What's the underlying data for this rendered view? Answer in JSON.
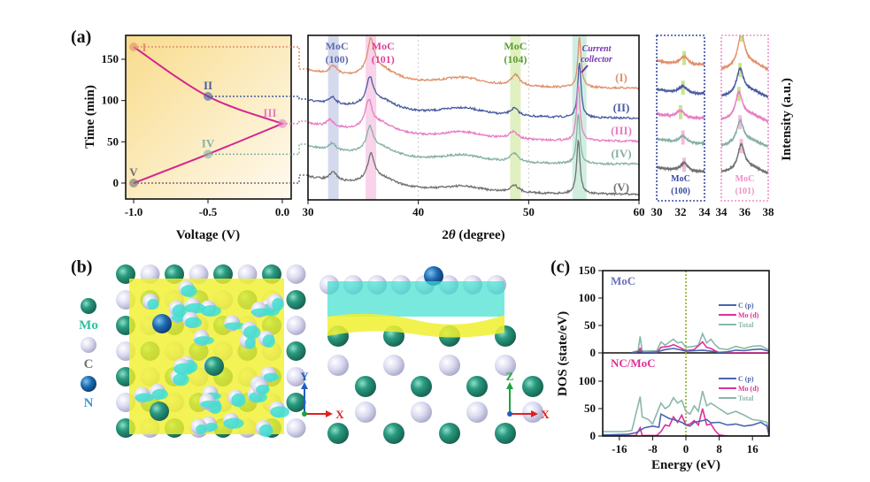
{
  "figure": {
    "panel_labels": {
      "a": "(a)",
      "b": "(b)",
      "c": "(c)"
    },
    "intensity_label": "Intensity (a.u.)"
  },
  "chart_data": [
    {
      "id": "a-voltage-time",
      "type": "line",
      "xlabel": "Voltage (V)",
      "ylabel": "Time (min)",
      "xlim": [
        -1.05,
        0.05
      ],
      "ylim": [
        -20,
        180
      ],
      "xticks": [
        -1.0,
        -0.5,
        0.0
      ],
      "xtick_labels": [
        "-1.0",
        "-0.5",
        "0.0"
      ],
      "yticks": [
        0,
        50,
        100,
        150
      ],
      "line_color": "#d4258f",
      "points": [
        {
          "label": "I",
          "x": -1.0,
          "y": 165,
          "color": "#e0906a"
        },
        {
          "label": "II",
          "x": -0.5,
          "y": 105,
          "color": "#4a5aa0"
        },
        {
          "label": "III",
          "x": 0.0,
          "y": 72,
          "color": "#e87cc4"
        },
        {
          "label": "IV",
          "x": -0.5,
          "y": 35,
          "color": "#86b0a4"
        },
        {
          "label": "V",
          "x": -1.0,
          "y": 0,
          "color": "#707070"
        }
      ]
    },
    {
      "id": "a-xrd",
      "type": "line",
      "xlabel": "2θ (degree)",
      "xlabel_prefix": "2",
      "xlabel_symbol": "θ",
      "xlabel_suffix": " (degree)",
      "xlim": [
        30,
        60
      ],
      "xticks": [
        30,
        40,
        50,
        60
      ],
      "bands": [
        {
          "x": 32.3,
          "color": "#c9d0e8"
        },
        {
          "x": 35.7,
          "color": "#f6c8e4"
        },
        {
          "x": 48.8,
          "color": "#d8ecb0"
        },
        {
          "x": 54.6,
          "color": "#c4ead8"
        }
      ],
      "annotations": [
        {
          "text": "MoC",
          "sub": "(100)",
          "x": 32.3,
          "color": "#5a6ab0"
        },
        {
          "text": "MoC",
          "sub": "(101)",
          "x": 36.8,
          "color": "#e0409a"
        },
        {
          "text": "MoC",
          "sub": "(104)",
          "x": 48.8,
          "color": "#5a9a30"
        }
      ],
      "current_collector": {
        "line1": "Current",
        "line2": "collector",
        "color": "#7a30b0"
      },
      "series": [
        {
          "name": "(I)",
          "color": "#e0906a",
          "peaks": [
            [
              32.3,
              0.35,
              0.4
            ],
            [
              35.7,
              1.3,
              0.35
            ],
            [
              36.5,
              0.55,
              1.8
            ],
            [
              44,
              0.35,
              2.5
            ],
            [
              48.8,
              0.45,
              0.45
            ],
            [
              54.6,
              2.0,
              0.18
            ]
          ]
        },
        {
          "name": "(II)",
          "color": "#4a5aa0",
          "peaks": [
            [
              32.2,
              0.3,
              0.4
            ],
            [
              35.6,
              1.0,
              0.35
            ],
            [
              36.5,
              0.5,
              1.8
            ],
            [
              44,
              0.35,
              2.5
            ],
            [
              48.7,
              0.3,
              0.45
            ],
            [
              54.6,
              2.2,
              0.18
            ]
          ]
        },
        {
          "name": "(III)",
          "color": "#e87cc4",
          "peaks": [
            [
              32.0,
              0.3,
              0.4
            ],
            [
              35.5,
              1.0,
              0.35
            ],
            [
              36.4,
              0.5,
              1.8
            ],
            [
              44,
              0.3,
              2.5
            ],
            [
              48.6,
              0.3,
              0.45
            ],
            [
              54.5,
              2.3,
              0.18
            ]
          ]
        },
        {
          "name": "(IV)",
          "color": "#86b0a4",
          "peaks": [
            [
              32.2,
              0.3,
              0.4
            ],
            [
              35.6,
              0.9,
              0.35
            ],
            [
              36.5,
              0.45,
              1.8
            ],
            [
              44,
              0.3,
              2.5
            ],
            [
              48.7,
              0.35,
              0.45
            ],
            [
              54.5,
              2.0,
              0.18
            ]
          ]
        },
        {
          "name": "(V)",
          "color": "#707070",
          "peaks": [
            [
              32.3,
              0.35,
              0.4
            ],
            [
              35.7,
              1.0,
              0.35
            ],
            [
              36.5,
              0.45,
              1.8
            ],
            [
              44,
              0.25,
              2.5
            ],
            [
              48.7,
              0.3,
              0.45
            ],
            [
              54.5,
              2.2,
              0.18
            ]
          ]
        }
      ]
    },
    {
      "id": "a-inset-100",
      "type": "line",
      "xlim": [
        30,
        34
      ],
      "xticks": [
        30,
        32,
        34
      ],
      "frame_color": "#3a4aa0",
      "label": "MoC",
      "sub": "(100)",
      "peak_markers": [
        32.3,
        32.2,
        32.0,
        32.2,
        32.3
      ],
      "marker_colors": [
        "#b8e070",
        "#b8e070",
        "#b8e070",
        "#f4a8d8",
        "#f4a8d8"
      ]
    },
    {
      "id": "a-inset-101",
      "type": "line",
      "xlim": [
        34,
        38
      ],
      "xticks": [
        34,
        36,
        38
      ],
      "frame_color": "#f090c8",
      "label": "MoC",
      "sub": "(101)",
      "peak_markers": [
        35.7,
        35.6,
        35.5,
        35.6,
        35.7
      ],
      "marker_colors": [
        "#b8e070",
        "#b8e070",
        "#b8e070",
        "#f4a8d8",
        "#f4a8d8"
      ]
    },
    {
      "id": "c-dos",
      "type": "line",
      "xlabel": "Energy (eV)",
      "ylabel": "DOS (state/eV)",
      "xlim": [
        -20,
        20
      ],
      "xticks": [
        -16,
        -8,
        0,
        8,
        16
      ],
      "fermi_line_color": "#8ab020",
      "panels": [
        {
          "title": "MoC",
          "title_color": "#6a70b8",
          "ylim": [
            0,
            150
          ],
          "yticks": [
            0,
            50,
            100,
            150
          ],
          "series": [
            {
              "name": "C (p)",
              "color": "#4a64b0",
              "points": [
                [
                  -13,
                  0
                ],
                [
                  -11,
                  3
                ],
                [
                  -10,
                  0
                ],
                [
                  -7,
                  2
                ],
                [
                  -5,
                  6
                ],
                [
                  -3,
                  8
                ],
                [
                  -1,
                  5
                ],
                [
                  0,
                  3
                ],
                [
                  2,
                  4
                ],
                [
                  4,
                  5
                ],
                [
                  6,
                  3
                ],
                [
                  8,
                  1
                ],
                [
                  10,
                  2
                ],
                [
                  12,
                  5
                ],
                [
                  14,
                  4
                ],
                [
                  16,
                  6
                ],
                [
                  18,
                  7
                ],
                [
                  20,
                  3
                ]
              ]
            },
            {
              "name": "Mo (d)",
              "color": "#e0309a",
              "points": [
                [
                  -13,
                  0
                ],
                [
                  -11.5,
                  2
                ],
                [
                  -11,
                  8
                ],
                [
                  -10.5,
                  1
                ],
                [
                  -7,
                  1
                ],
                [
                  -6,
                  10
                ],
                [
                  -4,
                  12
                ],
                [
                  -3,
                  15
                ],
                [
                  -1.5,
                  10
                ],
                [
                  0,
                  4
                ],
                [
                  2,
                  6
                ],
                [
                  4,
                  20
                ],
                [
                  5,
                  10
                ],
                [
                  6,
                  8
                ],
                [
                  7,
                  4
                ],
                [
                  8,
                  0
                ],
                [
                  20,
                  0
                ]
              ]
            },
            {
              "name": "Total",
              "color": "#8ab8a8",
              "points": [
                [
                  -13,
                  1
                ],
                [
                  -11.5,
                  4
                ],
                [
                  -11,
                  30
                ],
                [
                  -10.5,
                  3
                ],
                [
                  -7,
                  4
                ],
                [
                  -6,
                  20
                ],
                [
                  -5,
                  14
                ],
                [
                  -3,
                  25
                ],
                [
                  -2,
                  18
                ],
                [
                  -1,
                  20
                ],
                [
                  0,
                  10
                ],
                [
                  2,
                  12
                ],
                [
                  3,
                  14
                ],
                [
                  4,
                  35
                ],
                [
                  5,
                  18
                ],
                [
                  6,
                  25
                ],
                [
                  7,
                  15
                ],
                [
                  8,
                  8
                ],
                [
                  10,
                  6
                ],
                [
                  12,
                  12
                ],
                [
                  14,
                  8
                ],
                [
                  16,
                  12
                ],
                [
                  18,
                  13
                ],
                [
                  20,
                  5
                ]
              ]
            }
          ]
        },
        {
          "title": "NC/MoC",
          "title_color": "#e0309a",
          "ylim": [
            0,
            150
          ],
          "yticks": [
            0,
            50,
            100
          ],
          "series": [
            {
              "name": "C (p)",
              "color": "#4a64b0",
              "points": [
                [
                  -20,
                  2
                ],
                [
                  -14,
                  3
                ],
                [
                  -12,
                  6
                ],
                [
                  -10,
                  15
                ],
                [
                  -8,
                  18
                ],
                [
                  -6.5,
                  16
                ],
                [
                  -6,
                  40
                ],
                [
                  -4,
                  32
                ],
                [
                  -3,
                  30
                ],
                [
                  -1,
                  25
                ],
                [
                  0,
                  20
                ],
                [
                  1,
                  18
                ],
                [
                  2,
                  25
                ],
                [
                  4,
                  28
                ],
                [
                  5,
                  30
                ],
                [
                  6,
                  24
                ],
                [
                  8,
                  25
                ],
                [
                  10,
                  20
                ],
                [
                  12,
                  22
                ],
                [
                  14,
                  18
                ],
                [
                  16,
                  20
                ],
                [
                  18,
                  25
                ],
                [
                  19.5,
                  18
                ],
                [
                  20,
                  0
                ]
              ]
            },
            {
              "name": "Mo (d)",
              "color": "#e0309a",
              "points": [
                [
                  -20,
                  0
                ],
                [
                  -12,
                  1
                ],
                [
                  -11,
                  15
                ],
                [
                  -10.5,
                  1
                ],
                [
                  -7,
                  1
                ],
                [
                  -6,
                  8
                ],
                [
                  -5,
                  20
                ],
                [
                  -4,
                  18
                ],
                [
                  -3,
                  35
                ],
                [
                  -2,
                  25
                ],
                [
                  -1,
                  38
                ],
                [
                  0,
                  20
                ],
                [
                  1,
                  22
                ],
                [
                  2,
                  28
                ],
                [
                  3,
                  20
                ],
                [
                  4,
                  50
                ],
                [
                  5,
                  20
                ],
                [
                  6,
                  22
                ],
                [
                  7,
                  10
                ],
                [
                  8,
                  2
                ],
                [
                  10,
                  0
                ],
                [
                  20,
                  0
                ]
              ]
            },
            {
              "name": "Total",
              "color": "#8ab8a8",
              "points": [
                [
                  -20,
                  8
                ],
                [
                  -15,
                  8
                ],
                [
                  -13,
                  10
                ],
                [
                  -11,
                  72
                ],
                [
                  -10.5,
                  35
                ],
                [
                  -9,
                  30
                ],
                [
                  -8,
                  22
                ],
                [
                  -6,
                  60
                ],
                [
                  -5,
                  50
                ],
                [
                  -4,
                  55
                ],
                [
                  -3,
                  70
                ],
                [
                  -2,
                  60
                ],
                [
                  -1,
                  65
                ],
                [
                  0,
                  45
                ],
                [
                  1,
                  40
                ],
                [
                  2,
                  55
                ],
                [
                  3,
                  45
                ],
                [
                  4,
                  82
                ],
                [
                  5,
                  55
                ],
                [
                  6,
                  60
                ],
                [
                  8,
                  50
                ],
                [
                  10,
                  40
                ],
                [
                  12,
                  45
                ],
                [
                  14,
                  38
                ],
                [
                  16,
                  30
                ],
                [
                  18,
                  28
                ],
                [
                  19.5,
                  25
                ],
                [
                  20,
                  0
                ]
              ]
            }
          ]
        }
      ],
      "legend": [
        "C (p)",
        "Mo (d)",
        "Total"
      ],
      "legend_placement": "right"
    }
  ],
  "structure": {
    "legend": [
      {
        "label": "Mo",
        "color": "#2a9a80",
        "text_color": "#30c0a0"
      },
      {
        "label": "C",
        "color": "#d8d8f0",
        "text_color": "#777777"
      },
      {
        "label": "N",
        "color": "#1e6ab0",
        "text_color": "#3a9ae0"
      }
    ],
    "top_view_axes": {
      "vertical": "Y",
      "horizontal": "X",
      "vertical_color": "#2060c0"
    },
    "side_view_axes": {
      "vertical": "Z",
      "horizontal": "X",
      "vertical_color": "#20a040"
    },
    "axis_x_color": "#e02020",
    "isosurface_colors": {
      "accumulation": "#f0f030",
      "depletion": "#40e0d0"
    }
  }
}
